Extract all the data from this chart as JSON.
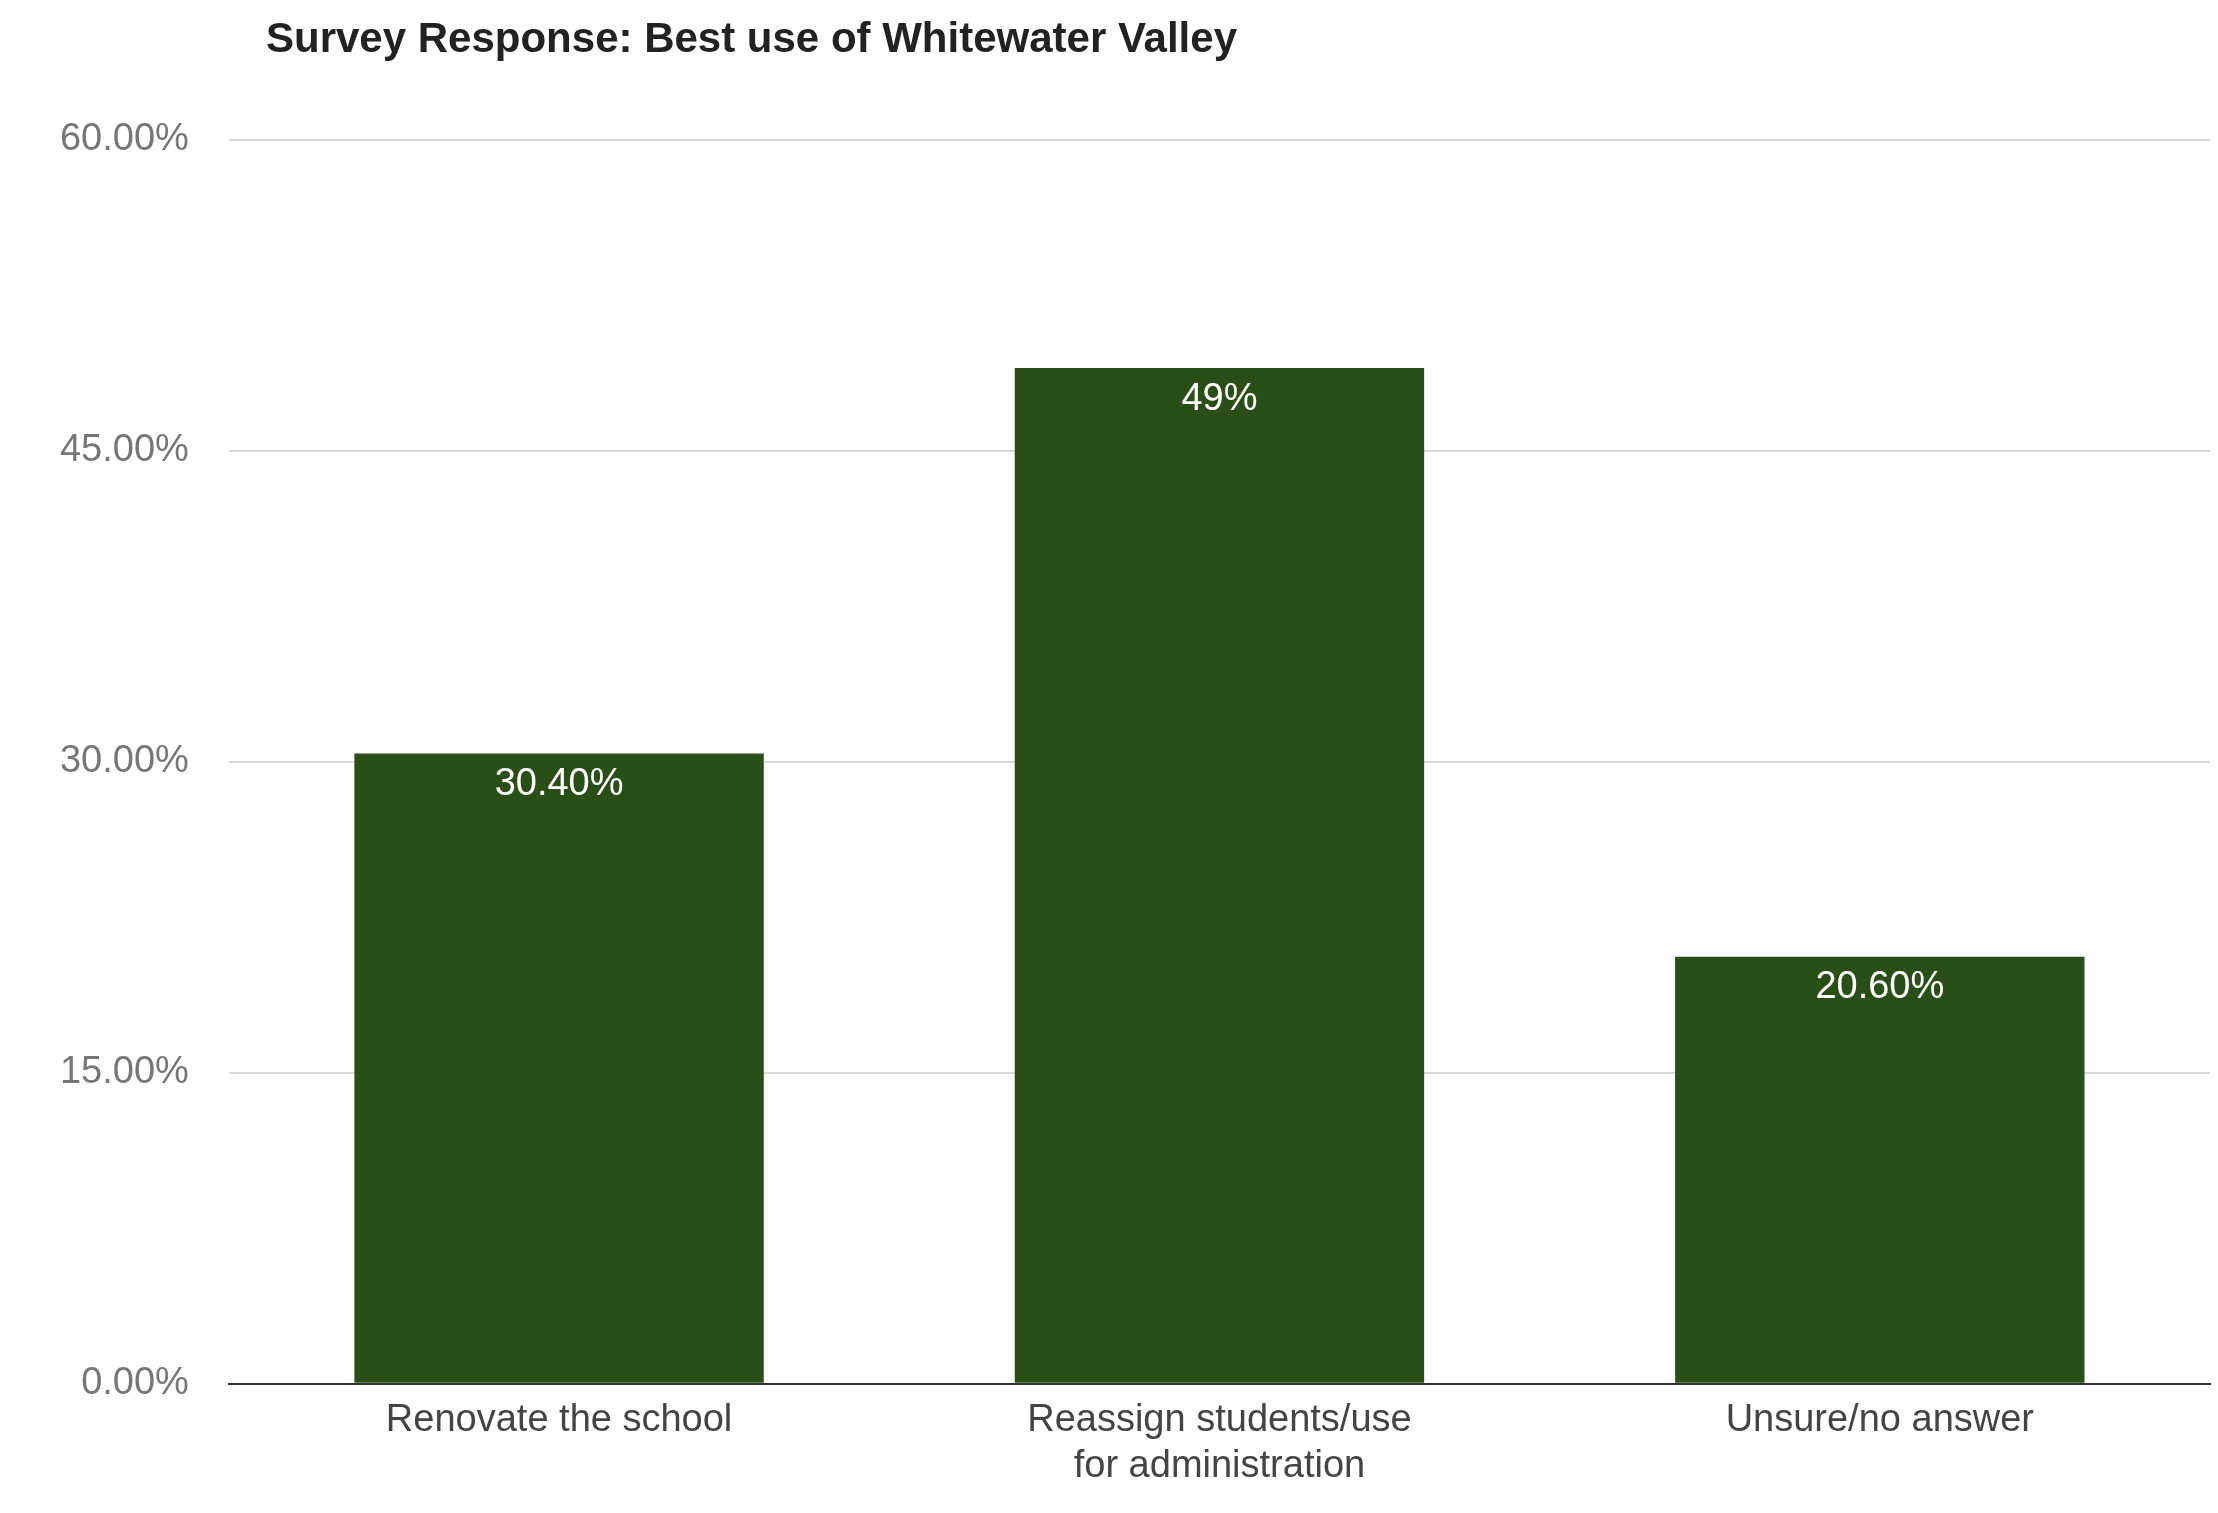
{
  "chart_data": {
    "type": "bar",
    "title": "Survey Response: Best use of Whitewater Valley",
    "categories": [
      "Renovate the school",
      "Reassign students/use for administration",
      "Unsure/no answer"
    ],
    "values": [
      30.4,
      49,
      20.6
    ],
    "value_labels": [
      "30.40%",
      "49%",
      "20.60%"
    ],
    "color": "#2a4f16",
    "ylim": [
      0,
      60
    ],
    "yticks": [
      {
        "value": 0,
        "label": "0.00%"
      },
      {
        "value": 15,
        "label": "15.00%"
      },
      {
        "value": 30,
        "label": "30.00%"
      },
      {
        "value": 45,
        "label": "45.00%"
      },
      {
        "value": 60,
        "label": "60.00%"
      }
    ],
    "grid": "y",
    "legend": false
  }
}
